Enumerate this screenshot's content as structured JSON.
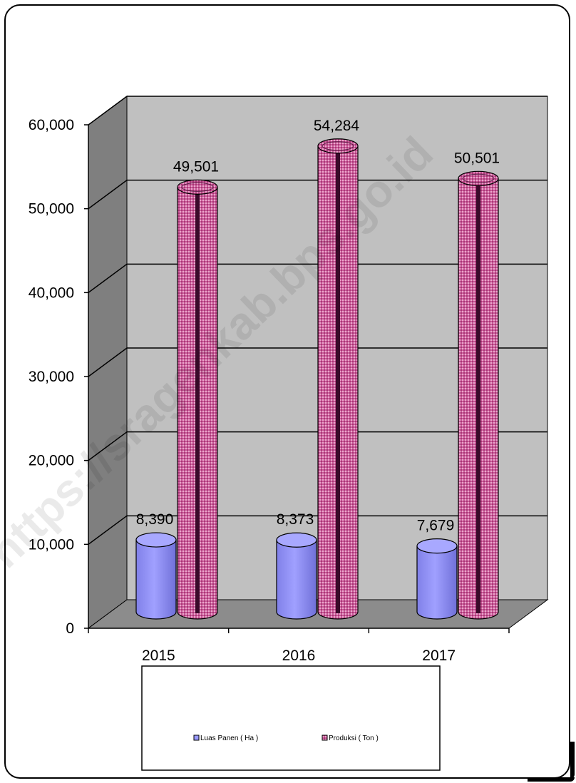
{
  "chart_data": {
    "type": "bar",
    "categories": [
      "2015",
      "2016",
      "2017"
    ],
    "series": [
      {
        "name": "Luas Panen ( Ha )",
        "values": [
          8390,
          8373,
          7679
        ],
        "labels": [
          "8,390",
          "8,373",
          "7,679"
        ],
        "color": "#9999ff"
      },
      {
        "name": "Produksi  ( Ton )",
        "values": [
          49501,
          54284,
          50501
        ],
        "labels": [
          "49,501",
          "54,284",
          "50,501"
        ],
        "color": "#cc6699"
      }
    ],
    "yticks": [
      "0",
      "10,000",
      "20,000",
      "30,000",
      "40,000",
      "50,000",
      "60,000"
    ],
    "ylim": [
      0,
      60000
    ],
    "grid": true,
    "legend": "bottom",
    "watermark": "https://sragenkab.bps.go.id"
  }
}
